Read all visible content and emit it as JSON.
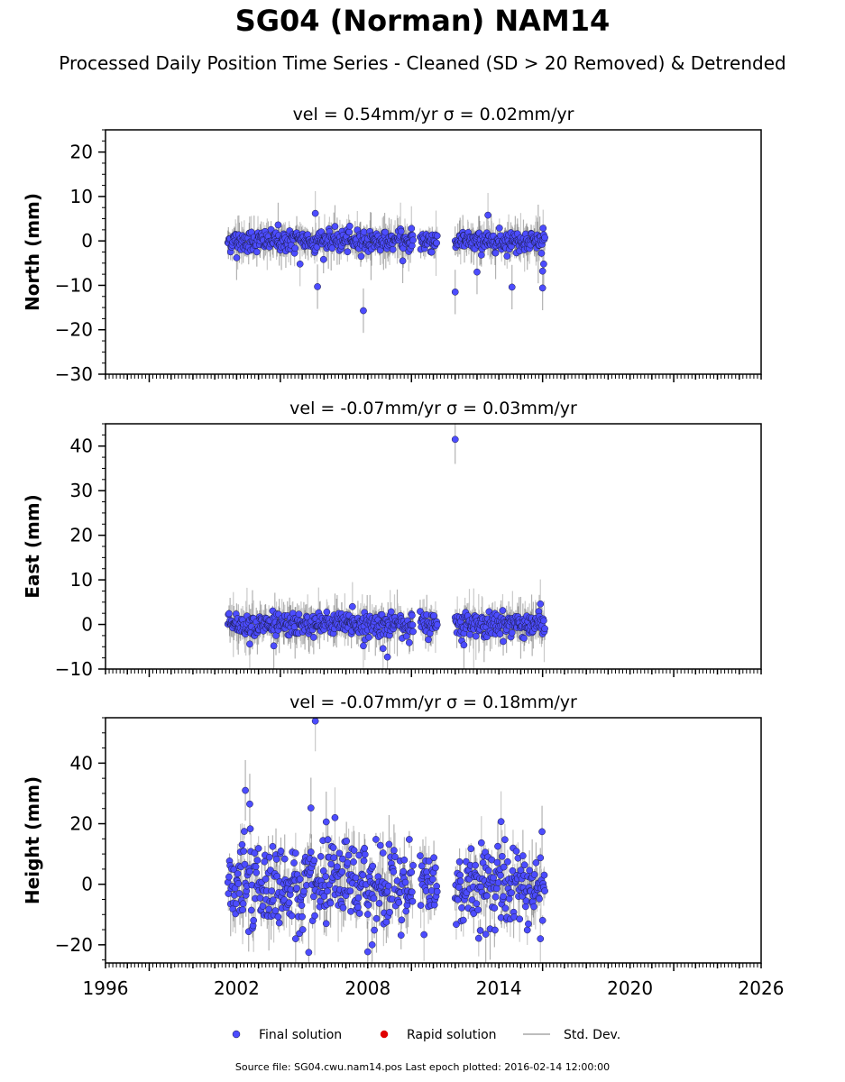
{
  "title": "SG04 (Norman) NAM14",
  "subtitle": "Processed Daily Position Time Series - Cleaned (SD > 20 Removed) & Detrended",
  "source_note": "Source file: SG04.cwu.nam14.pos  Last epoch plotted: 2016-02-14 12:00:00",
  "legend": {
    "position": "bottom-center",
    "items": [
      {
        "label": "Final solution",
        "color": "#4c4cff"
      },
      {
        "label": "Rapid solution",
        "color": "#e00000"
      },
      {
        "label": "Std. Dev.",
        "color": "#bdbdbd"
      }
    ]
  },
  "colors": {
    "final": "#4c4cff",
    "rapid": "#e00000",
    "stddev": "#bdbdbd",
    "stddev_dense": "#555555"
  },
  "chart_data": [
    {
      "type": "scatter",
      "name": "north",
      "panel_title": "vel = 0.54mm/yr   σ = 0.02mm/yr",
      "ylabel": "North (mm)",
      "xlim": [
        1996,
        2026
      ],
      "ylim": [
        -30,
        25
      ],
      "yticks": [
        -30,
        -20,
        -10,
        0,
        10,
        20
      ],
      "ytick_labels": [
        "−30",
        "−20",
        "−10",
        "0",
        "10",
        "20"
      ],
      "segments": [
        [
          2001.6,
          2009.3
        ],
        [
          2009.35,
          2010.1
        ],
        [
          2010.4,
          2011.2
        ],
        [
          2012.0,
          2016.12
        ]
      ],
      "noise_sd": 1.2,
      "err_sd": 2.0,
      "outliers": [
        [
          2005.6,
          6.2
        ],
        [
          2005.7,
          -10.3
        ],
        [
          2007.8,
          -15.7
        ],
        [
          2012.0,
          -11.5
        ],
        [
          2013.5,
          5.8
        ],
        [
          2013.0,
          -7.0
        ],
        [
          2014.6,
          -10.4
        ],
        [
          2016.0,
          -10.6
        ],
        [
          2016.0,
          -6.8
        ],
        [
          2016.05,
          -5.2
        ],
        [
          2002.0,
          -3.8
        ],
        [
          2004.9,
          -5.2
        ],
        [
          2009.6,
          -4.5
        ],
        [
          2010.0,
          2.8
        ],
        [
          2003.9,
          3.6
        ]
      ]
    },
    {
      "type": "scatter",
      "name": "east",
      "panel_title": "vel = -0.07mm/yr   σ = 0.03mm/yr",
      "ylabel": "East (mm)",
      "xlim": [
        1996,
        2026
      ],
      "ylim": [
        -10,
        45
      ],
      "yticks": [
        -10,
        0,
        10,
        20,
        30,
        40
      ],
      "ytick_labels": [
        "−10",
        "0",
        "10",
        "20",
        "30",
        "40"
      ],
      "segments": [
        [
          2001.6,
          2009.3
        ],
        [
          2009.35,
          2010.1
        ],
        [
          2010.4,
          2011.2
        ],
        [
          2012.0,
          2016.12
        ]
      ],
      "noise_sd": 1.3,
      "err_sd": 2.2,
      "outliers": [
        [
          2012.0,
          41.5
        ],
        [
          2008.7,
          -5.4
        ],
        [
          2008.9,
          -7.3
        ],
        [
          2007.8,
          -4.8
        ],
        [
          2003.7,
          -4.8
        ],
        [
          2002.6,
          -4.4
        ],
        [
          2012.4,
          -4.6
        ],
        [
          2015.9,
          4.6
        ],
        [
          2007.3,
          4.0
        ]
      ]
    },
    {
      "type": "scatter",
      "name": "height",
      "panel_title": "vel = -0.07mm/yr   σ = 0.18mm/yr",
      "ylabel": "Height (mm)",
      "xlim": [
        1996,
        2026
      ],
      "ylim": [
        -26,
        55
      ],
      "yticks": [
        -20,
        0,
        20,
        40
      ],
      "ytick_labels": [
        "−20",
        "0",
        "20",
        "40"
      ],
      "xticks": [
        1996,
        2002,
        2008,
        2014,
        2020,
        2026
      ],
      "xtick_labels": [
        "1996",
        "2002",
        "2008",
        "2014",
        "2020",
        "2026"
      ],
      "segments": [
        [
          2001.6,
          2009.3
        ],
        [
          2009.35,
          2010.1
        ],
        [
          2010.4,
          2011.2
        ],
        [
          2012.0,
          2016.12
        ]
      ],
      "noise_sd": 7.0,
      "err_sd": 4.0,
      "outliers": [
        [
          2005.6,
          53.9
        ],
        [
          2002.4,
          31.0
        ],
        [
          2002.6,
          26.5
        ],
        [
          2005.4,
          25.2
        ],
        [
          2005.3,
          -22.5
        ],
        [
          2004.7,
          -18.0
        ],
        [
          2008.0,
          -22.3
        ],
        [
          2008.2,
          -20.0
        ],
        [
          2015.9,
          -18.0
        ],
        [
          2013.4,
          -16.5
        ],
        [
          2006.5,
          22.0
        ],
        [
          2006.1,
          20.6
        ],
        [
          2014.1,
          20.7
        ]
      ]
    }
  ]
}
